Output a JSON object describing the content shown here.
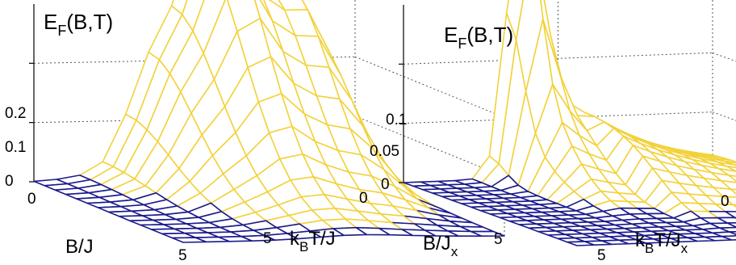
{
  "colors": {
    "surface_low": "#1a1a8c",
    "surface_high": "#f2d23c",
    "guide": "#555555",
    "text": "#000000"
  },
  "chart_data": [
    {
      "type": "surface",
      "zlabel": "E_F(B,T)",
      "zlabel_main": "E",
      "zlabel_sub": "F",
      "zlabel_rest": "(B,T)",
      "xlabel": "B/J",
      "xlabel_main": "B/J",
      "xlabel_sub": "",
      "ylabel": "k_B T/J",
      "ylabel_k": "k",
      "ylabel_sub": "B",
      "ylabel_rest": "T/J",
      "ylabel_rest_sub": "",
      "z_ticks": [
        "0",
        "0.1",
        "0.2"
      ],
      "z_tick_values": [
        0,
        0.1,
        0.2
      ],
      "b_ticks": [
        "0",
        "5"
      ],
      "t_ticks": [
        "0",
        "5"
      ],
      "b_range": [
        0,
        7.5
      ],
      "t_range": [
        0,
        7.5
      ],
      "z_range": [
        0,
        0.3
      ],
      "grid_rows": 14,
      "grid_cols": 14,
      "peak_height": 0.3,
      "color_threshold": 0.01,
      "grid": true
    },
    {
      "type": "surface",
      "zlabel": "E_F(B,T)",
      "zlabel_main": "E",
      "zlabel_sub": "F",
      "zlabel_rest": "(B,T)",
      "xlabel": "B/J_x",
      "xlabel_main": "B/J",
      "xlabel_sub": "x",
      "ylabel": "k_B T/J_x",
      "ylabel_k": "k",
      "ylabel_sub": "B",
      "ylabel_rest": "T/J",
      "ylabel_rest_sub": "x",
      "z_ticks": [
        "0",
        "0.05",
        "0.1"
      ],
      "z_tick_values": [
        0,
        0.05,
        0.1
      ],
      "b_ticks": [
        "5"
      ],
      "t_ticks": [
        "0",
        "5"
      ],
      "b_range": [
        0,
        7.5
      ],
      "t_range": [
        0,
        7.5
      ],
      "z_range": [
        0,
        0.15
      ],
      "grid_rows": 18,
      "grid_cols": 18,
      "peak_height": 0.15,
      "color_threshold": 0.004,
      "grid": true
    }
  ]
}
